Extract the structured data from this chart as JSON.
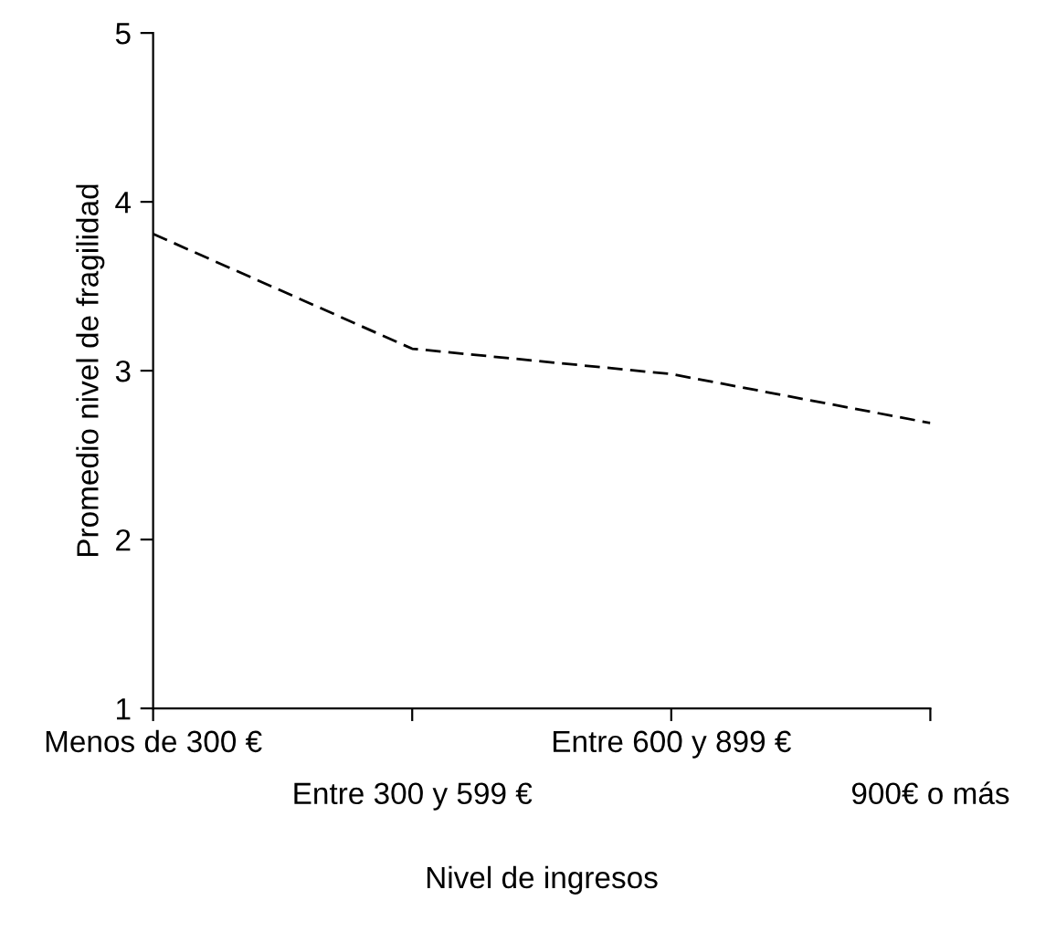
{
  "chart_data": {
    "type": "line",
    "xlabel": "Nivel de ingresos",
    "ylabel": "Promedio nivel de fragilidad",
    "categories": [
      "Menos de 300 €",
      "Entre 300 y 599 €",
      "Entre 600 y 899 €",
      "900€ o más"
    ],
    "series": [
      {
        "color": "#000000",
        "values": [
          3.81,
          3.13,
          2.98,
          2.69
        ],
        "line_style": "dashed"
      }
    ],
    "ylim": [
      1,
      5
    ],
    "yticks": [
      1,
      2,
      3,
      4,
      5
    ],
    "grid": false,
    "legend": false,
    "marker": "none"
  }
}
